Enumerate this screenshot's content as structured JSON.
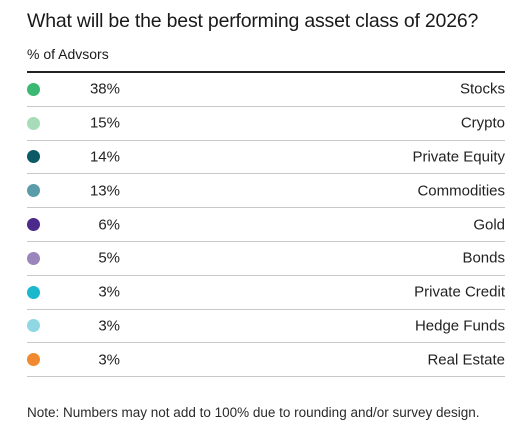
{
  "chart_data": {
    "type": "table",
    "title": "What will be the best performing asset class of 2026?",
    "subtitle": "% of Advsors",
    "rows": [
      {
        "label": "Stocks",
        "value": 38,
        "value_text": "38%",
        "color": "#3bb873"
      },
      {
        "label": "Crypto",
        "value": 15,
        "value_text": "15%",
        "color": "#a8dcb9"
      },
      {
        "label": "Private Equity",
        "value": 14,
        "value_text": "14%",
        "color": "#0b5a65"
      },
      {
        "label": "Commodities",
        "value": 13,
        "value_text": "13%",
        "color": "#5b9cab"
      },
      {
        "label": "Gold",
        "value": 6,
        "value_text": "6%",
        "color": "#4b2a8c"
      },
      {
        "label": "Bonds",
        "value": 5,
        "value_text": "5%",
        "color": "#9a85bd"
      },
      {
        "label": "Private Credit",
        "value": 3,
        "value_text": "3%",
        "color": "#1bb7cc"
      },
      {
        "label": "Hedge Funds",
        "value": 3,
        "value_text": "3%",
        "color": "#8fd8e3"
      },
      {
        "label": "Real Estate",
        "value": 3,
        "value_text": "3%",
        "color": "#f0892f"
      }
    ],
    "note": "Note: Numbers may not add to 100% due to rounding and/or survey design."
  }
}
